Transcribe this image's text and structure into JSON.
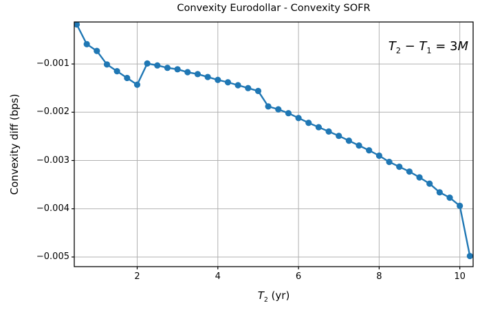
{
  "figure": {
    "title": "Convexity Eurodollar - Convexity SOFR",
    "ylabel": "Convexity diff (bps)",
    "xlabel": {
      "var": "T",
      "sub": "2",
      "rest": " (yr)"
    },
    "annotation": {
      "var1": "T",
      "sub1": "2",
      "op": " − ",
      "var2": "T",
      "sub2": "1",
      "eq": " = 3",
      "unit": "M"
    },
    "colors": {
      "line": "#1f77b4",
      "grid": "#b0b0b0",
      "spine": "#000000",
      "background": "#ffffff",
      "text": "#000000"
    }
  },
  "chart_data": {
    "type": "line",
    "title": "Convexity Eurodollar - Convexity SOFR",
    "xlabel": "T2 (yr)",
    "ylabel": "Convexity diff (bps)",
    "annotation": "T2 − T1 = 3M",
    "grid": true,
    "legend": null,
    "marker": "circle",
    "line_color": "#1f77b4",
    "xlim": [
      0.44,
      10.33
    ],
    "ylim": [
      -0.0052,
      -0.00013
    ],
    "x_ticks": [
      2,
      4,
      6,
      8,
      10
    ],
    "x_tick_labels": [
      "2",
      "4",
      "6",
      "8",
      "10"
    ],
    "y_ticks": [
      -0.001,
      -0.002,
      -0.003,
      -0.004,
      -0.005
    ],
    "y_tick_labels": [
      "−0.001",
      "−0.002",
      "−0.003",
      "−0.004",
      "−0.005"
    ],
    "x": [
      0.5,
      0.75,
      1.0,
      1.25,
      1.5,
      1.75,
      2.0,
      2.25,
      2.5,
      2.75,
      3.0,
      3.25,
      3.5,
      3.75,
      4.0,
      4.25,
      4.5,
      4.75,
      5.0,
      5.25,
      5.5,
      5.75,
      6.0,
      6.25,
      6.5,
      6.75,
      7.0,
      7.25,
      7.5,
      7.75,
      8.0,
      8.25,
      8.5,
      8.75,
      9.0,
      9.25,
      9.5,
      9.75,
      10.0,
      10.25
    ],
    "y": [
      -0.00018,
      -0.00059,
      -0.00073,
      -0.00101,
      -0.00115,
      -0.00129,
      -0.00143,
      -0.00099,
      -0.00103,
      -0.00108,
      -0.00111,
      -0.00117,
      -0.00121,
      -0.00127,
      -0.00133,
      -0.00138,
      -0.00144,
      -0.0015,
      -0.00156,
      -0.00188,
      -0.00194,
      -0.00202,
      -0.00212,
      -0.00222,
      -0.00231,
      -0.0024,
      -0.00249,
      -0.00259,
      -0.00269,
      -0.00279,
      -0.0029,
      -0.00303,
      -0.00313,
      -0.00323,
      -0.00335,
      -0.00348,
      -0.00366,
      -0.00377,
      -0.00394,
      -0.00498
    ]
  }
}
